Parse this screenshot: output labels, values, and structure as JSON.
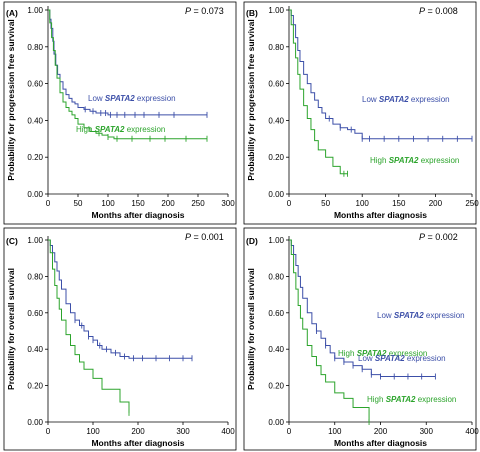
{
  "figure": {
    "colors": {
      "low": "#3c4fa8",
      "high": "#2ca42c",
      "frame": "#000000"
    }
  },
  "chart_data": [
    {
      "type": "line",
      "chart_kind": "kaplan-meier",
      "panel_label": "(A)",
      "p_prefix": "P",
      "p_value": " = 0.073",
      "ylabel": "Probability for progression free survival",
      "xlabel": "Months after diagnosis",
      "xlim": [
        0,
        300
      ],
      "ylim": [
        0,
        1
      ],
      "xticks": [
        0,
        50,
        100,
        150,
        200,
        250,
        300
      ],
      "yticks": [
        0,
        0.2,
        0.4,
        0.6,
        0.8,
        1.0
      ],
      "ytick_labels": [
        "0.00",
        "0.20",
        "0.40",
        "0.60",
        "0.80",
        "1.00"
      ],
      "series": [
        {
          "name": "Low SPATA2 expression",
          "color_key": "low",
          "label_pre": "Low ",
          "label_gene": "SPATA2",
          "label_post": " expression",
          "x": [
            0,
            3,
            5,
            8,
            10,
            13,
            16,
            20,
            25,
            30,
            35,
            40,
            45,
            50,
            60,
            70,
            80,
            90,
            100,
            110,
            120,
            140,
            160,
            180,
            200,
            230,
            265
          ],
          "y": [
            1.0,
            0.95,
            0.9,
            0.83,
            0.76,
            0.7,
            0.65,
            0.61,
            0.57,
            0.54,
            0.52,
            0.5,
            0.49,
            0.47,
            0.46,
            0.45,
            0.44,
            0.44,
            0.43,
            0.43,
            0.43,
            0.43,
            0.43,
            0.43,
            0.43,
            0.43,
            0.43
          ],
          "censor_x": [
            62,
            75,
            88,
            96,
            104,
            115,
            128,
            145,
            160,
            185,
            210,
            265
          ]
        },
        {
          "name": "High SPATA2 expression",
          "color_key": "high",
          "label_pre": "High ",
          "label_gene": "SPATA2",
          "label_post": " expression",
          "x": [
            0,
            3,
            6,
            9,
            12,
            15,
            20,
            25,
            30,
            35,
            40,
            45,
            50,
            60,
            70,
            80,
            90,
            100,
            110,
            130,
            150,
            180,
            200,
            230,
            265
          ],
          "y": [
            1.0,
            0.93,
            0.85,
            0.78,
            0.7,
            0.63,
            0.55,
            0.5,
            0.47,
            0.45,
            0.43,
            0.41,
            0.38,
            0.36,
            0.34,
            0.33,
            0.32,
            0.31,
            0.3,
            0.3,
            0.3,
            0.3,
            0.3,
            0.3,
            0.3
          ],
          "censor_x": [
            85,
            100,
            115,
            140,
            170,
            195,
            230,
            265
          ]
        }
      ]
    },
    {
      "type": "line",
      "chart_kind": "kaplan-meier",
      "panel_label": "(B)",
      "p_prefix": "P",
      "p_value": " = 0.008",
      "ylabel": "Probability for progression free survival",
      "xlabel": "Months after diagnosis",
      "xlim": [
        0,
        250
      ],
      "ylim": [
        0,
        1
      ],
      "xticks": [
        0,
        50,
        100,
        150,
        200,
        250
      ],
      "yticks": [
        0,
        0.2,
        0.4,
        0.6,
        0.8,
        1.0
      ],
      "ytick_labels": [
        "0.00",
        "0.20",
        "0.40",
        "0.60",
        "0.80",
        "1.00"
      ],
      "series": [
        {
          "name": "Low SPATA2 expression",
          "color_key": "low",
          "label_pre": "Low ",
          "label_gene": "SPATA2",
          "label_post": " expression",
          "x": [
            0,
            3,
            6,
            9,
            12,
            15,
            20,
            25,
            30,
            35,
            40,
            45,
            50,
            60,
            70,
            80,
            90,
            100,
            120,
            150,
            200,
            250
          ],
          "y": [
            1.0,
            0.97,
            0.92,
            0.85,
            0.78,
            0.72,
            0.65,
            0.6,
            0.55,
            0.51,
            0.47,
            0.44,
            0.41,
            0.38,
            0.36,
            0.35,
            0.33,
            0.3,
            0.3,
            0.3,
            0.3,
            0.3
          ],
          "censor_x": [
            55,
            70,
            85,
            100,
            110,
            130,
            150,
            170,
            190,
            210,
            230,
            250
          ]
        },
        {
          "name": "High SPATA2 expression",
          "color_key": "high",
          "label_pre": "High ",
          "label_gene": "SPATA2",
          "label_post": " expression",
          "x": [
            0,
            3,
            6,
            9,
            12,
            15,
            20,
            25,
            30,
            35,
            40,
            50,
            60,
            70,
            80
          ],
          "y": [
            1.0,
            0.92,
            0.82,
            0.74,
            0.65,
            0.57,
            0.48,
            0.41,
            0.35,
            0.29,
            0.24,
            0.2,
            0.15,
            0.11,
            0.11
          ],
          "censor_x": [
            75,
            80
          ]
        }
      ]
    },
    {
      "type": "line",
      "chart_kind": "kaplan-meier",
      "panel_label": "(C)",
      "p_prefix": "P",
      "p_value": " = 0.001",
      "ylabel": "Probability for overall survival",
      "xlabel": "Months after diagnosis",
      "xlim": [
        0,
        400
      ],
      "ylim": [
        0,
        1
      ],
      "xticks": [
        0,
        100,
        200,
        300,
        400
      ],
      "yticks": [
        0,
        0.2,
        0.4,
        0.6,
        0.8,
        1.0
      ],
      "ytick_labels": [
        "0.00",
        "0.20",
        "0.40",
        "0.60",
        "0.80",
        "1.00"
      ],
      "series": [
        {
          "name": "Low SPATA2 expression",
          "color_key": "low",
          "label_pre": "Low ",
          "label_gene": "SPATA2",
          "label_post": " expression",
          "x": [
            0,
            5,
            10,
            15,
            20,
            25,
            30,
            40,
            50,
            60,
            70,
            80,
            90,
            100,
            110,
            120,
            140,
            160,
            180,
            200,
            250,
            320
          ],
          "y": [
            1.0,
            0.97,
            0.93,
            0.88,
            0.83,
            0.78,
            0.73,
            0.65,
            0.6,
            0.56,
            0.53,
            0.5,
            0.47,
            0.45,
            0.42,
            0.4,
            0.38,
            0.36,
            0.35,
            0.35,
            0.35,
            0.35
          ],
          "censor_x": [
            60,
            75,
            90,
            100,
            115,
            130,
            150,
            170,
            190,
            210,
            240,
            270,
            300,
            320
          ]
        },
        {
          "name": "High SPATA2 expression",
          "color_key": "high",
          "label_pre": "High ",
          "label_gene": "SPATA2",
          "label_post": " expression",
          "x": [
            0,
            5,
            10,
            15,
            20,
            25,
            30,
            40,
            50,
            60,
            70,
            80,
            100,
            120,
            140,
            160,
            180
          ],
          "y": [
            1.0,
            0.93,
            0.84,
            0.75,
            0.68,
            0.62,
            0.56,
            0.48,
            0.42,
            0.37,
            0.33,
            0.29,
            0.24,
            0.18,
            0.18,
            0.11,
            0.05
          ],
          "censor_x": [
            180
          ]
        }
      ]
    },
    {
      "type": "line",
      "chart_kind": "kaplan-meier",
      "panel_label": "(D)",
      "p_prefix": "P",
      "p_value": " = 0.002",
      "ylabel": "Probability for overall survival",
      "xlabel": "Months after diagnosis",
      "xlim": [
        0,
        400
      ],
      "ylim": [
        0,
        1
      ],
      "xticks": [
        0,
        100,
        200,
        300,
        400
      ],
      "yticks": [
        0,
        0.2,
        0.4,
        0.6,
        0.8,
        1.0
      ],
      "ytick_labels": [
        "0.00",
        "0.20",
        "0.40",
        "0.60",
        "0.80",
        "1.00"
      ],
      "series": [
        {
          "name": "Low SPATA2 expression",
          "color_key": "low",
          "label_pre": "Low ",
          "label_gene": "SPATA2",
          "label_post": " expression",
          "x": [
            0,
            5,
            10,
            15,
            20,
            25,
            30,
            40,
            50,
            60,
            70,
            80,
            90,
            100,
            120,
            140,
            160,
            180,
            200,
            250,
            320
          ],
          "y": [
            1.0,
            0.97,
            0.92,
            0.86,
            0.8,
            0.74,
            0.68,
            0.6,
            0.54,
            0.5,
            0.46,
            0.42,
            0.38,
            0.35,
            0.33,
            0.31,
            0.29,
            0.26,
            0.25,
            0.25,
            0.25
          ],
          "censor_x": [
            60,
            80,
            100,
            120,
            140,
            160,
            180,
            200,
            230,
            260,
            290,
            320
          ]
        },
        {
          "name": "High SPATA2 expression",
          "color_key": "high",
          "label_pre": "High ",
          "label_gene": "SPATA2",
          "label_post": " expression",
          "x": [
            0,
            5,
            10,
            15,
            20,
            25,
            30,
            40,
            50,
            60,
            70,
            80,
            100,
            120,
            140,
            160,
            175
          ],
          "y": [
            1.0,
            0.92,
            0.82,
            0.73,
            0.64,
            0.57,
            0.51,
            0.42,
            0.36,
            0.31,
            0.26,
            0.22,
            0.16,
            0.13,
            0.08,
            0.08,
            0.0
          ],
          "censor_x": [
            175
          ]
        }
      ]
    }
  ]
}
